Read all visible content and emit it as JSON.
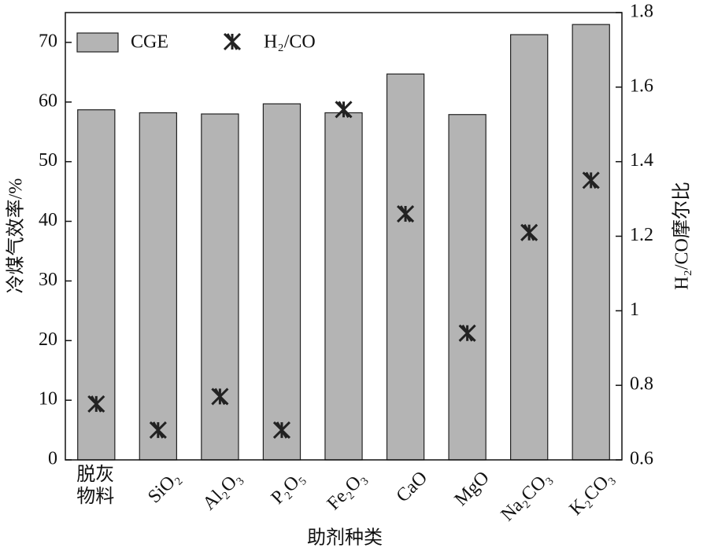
{
  "chart_data": {
    "type": "bar",
    "categories": [
      "脱灰物料",
      "SiO₂",
      "Al₂O₃",
      "P₂O₅",
      "Fe₂O₃",
      "CaO",
      "MgO",
      "Na₂CO₃",
      "K₂CO₃"
    ],
    "series": [
      {
        "name": "CGE",
        "type": "bar",
        "color": "#b4b4b4",
        "values": [
          58.7,
          58.2,
          58.0,
          59.7,
          58.2,
          64.7,
          57.9,
          71.3,
          73.0
        ]
      },
      {
        "name": "H₂/CO",
        "type": "scatter",
        "axis": "y2",
        "color": "#222222",
        "values": [
          0.75,
          0.68,
          0.77,
          0.68,
          1.54,
          1.26,
          0.94,
          1.21,
          1.35
        ]
      }
    ],
    "xlabel": "助剂种类",
    "ylabel": "冷煤气效率/%",
    "y2label": "H₂/CO摩尔比",
    "ylim": [
      0,
      75
    ],
    "yticks": [
      0,
      10,
      20,
      30,
      40,
      50,
      60,
      70
    ],
    "y2lim": [
      0.6,
      1.8
    ],
    "y2ticks": [
      0.6,
      0.8,
      1.0,
      1.2,
      1.4,
      1.6,
      1.8
    ],
    "legend": "upper left"
  }
}
